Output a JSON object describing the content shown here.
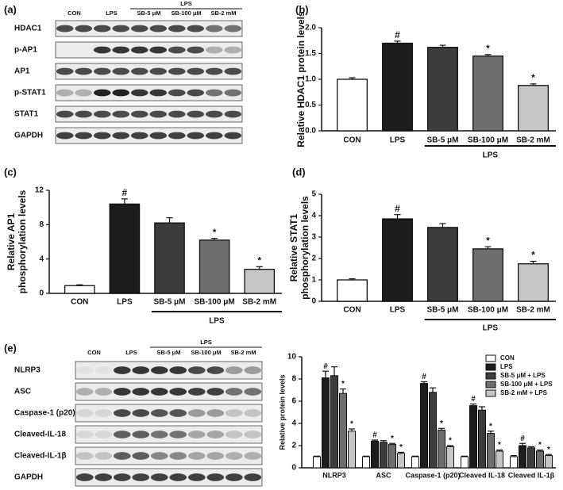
{
  "blots": [
    {
      "panel": "(a)",
      "group_label": "LPS",
      "lanes": [
        "CON",
        "LPS",
        "SB-5 μM",
        "SB-100 μM",
        "SB-2 mM"
      ],
      "rows": [
        "HDAC1",
        "p-AP1",
        "AP1",
        "p-STAT1",
        "STAT1",
        "GAPDH"
      ]
    },
    {
      "panel": "(e)",
      "group_label": "LPS",
      "lanes": [
        "CON",
        "LPS",
        "SB-5 μM",
        "SB-100 μM",
        "SB-2 mM"
      ],
      "rows": [
        "NLRP3",
        "ASC",
        "Caspase-1 (p20)",
        "Cleaved-IL-18",
        "Cleaved-IL-1β",
        "GAPDH"
      ]
    }
  ],
  "chart_data": [
    {
      "type": "bar",
      "panel": "(b)",
      "ylabel": [
        "Relative HDAC1 protein levels"
      ],
      "categories": [
        "CON",
        "LPS",
        "SB-5 μM",
        "SB-100 μM",
        "SB-2 mM"
      ],
      "group_label": "LPS",
      "values": [
        1.0,
        1.7,
        1.62,
        1.45,
        0.88
      ],
      "errors": [
        0.03,
        0.04,
        0.04,
        0.03,
        0.03
      ],
      "annotations": [
        null,
        "#",
        null,
        "*",
        "*"
      ],
      "colors": [
        "#ffffff",
        "#1c1c1c",
        "#3c3c3c",
        "#6e6e6e",
        "#c6c6c6"
      ],
      "ylim": [
        0,
        2
      ],
      "yticks": [
        {
          "value": 0,
          "label": "0.0"
        },
        0.5,
        {
          "value": 1,
          "label": "1.0"
        },
        1.5,
        {
          "value": 2,
          "label": "2.0"
        }
      ]
    },
    {
      "type": "bar",
      "panel": "(c)",
      "ylabel": [
        "Relative AP1",
        "phosphorylation levels"
      ],
      "categories": [
        "CON",
        "LPS",
        "SB-5 μM",
        "SB-100 μM",
        "SB-2 mM"
      ],
      "group_label": "LPS",
      "values": [
        0.9,
        10.4,
        8.2,
        6.2,
        2.8
      ],
      "errors": [
        0.1,
        0.6,
        0.6,
        0.2,
        0.3
      ],
      "annotations": [
        null,
        "#",
        null,
        "*",
        "*"
      ],
      "colors": [
        "#ffffff",
        "#1c1c1c",
        "#3c3c3c",
        "#6e6e6e",
        "#c6c6c6"
      ],
      "ylim": [
        0,
        12
      ],
      "yticks": [
        0,
        4,
        8,
        12
      ]
    },
    {
      "type": "bar",
      "panel": "(d)",
      "ylabel": [
        "Relative STAT1",
        "phosphorylation levels"
      ],
      "categories": [
        "CON",
        "LPS",
        "SB-5 μM",
        "SB-100 μM",
        "SB-2 mM"
      ],
      "group_label": "LPS",
      "values": [
        1.0,
        3.85,
        3.45,
        2.45,
        1.75
      ],
      "errors": [
        0.05,
        0.2,
        0.18,
        0.1,
        0.12
      ],
      "annotations": [
        null,
        "#",
        null,
        "*",
        "*"
      ],
      "colors": [
        "#ffffff",
        "#1c1c1c",
        "#3c3c3c",
        "#6e6e6e",
        "#c6c6c6"
      ],
      "ylim": [
        0,
        5
      ],
      "yticks": [
        0,
        1,
        2,
        3,
        4,
        5
      ]
    },
    {
      "type": "grouped_bar",
      "ylabel": [
        "Relative protein levels"
      ],
      "categories": [
        "NLRP3",
        "ASC",
        "Caspase-1 (p20)",
        "Cleaved IL-18",
        "Cleaved IL-1β"
      ],
      "ylim": [
        0,
        10
      ],
      "yticks": [
        0,
        2,
        4,
        6,
        8,
        10
      ],
      "series": [
        {
          "name": "CON",
          "color": "#ffffff",
          "values": [
            1.0,
            1.0,
            1.0,
            1.0,
            1.0
          ],
          "errors": [
            0.05,
            0.05,
            0.05,
            0.05,
            0.1
          ]
        },
        {
          "name": "LPS",
          "color": "#1c1c1c",
          "values": [
            8.1,
            2.4,
            7.6,
            5.6,
            2.0
          ],
          "errors": [
            0.6,
            0.1,
            0.15,
            0.15,
            0.2
          ],
          "annotations": [
            "#",
            "#",
            "#",
            "#",
            "#"
          ]
        },
        {
          "name": "SB-5 μM + LPS",
          "color": "#3c3c3c",
          "values": [
            8.3,
            2.3,
            6.8,
            5.2,
            1.8
          ],
          "errors": [
            0.8,
            0.15,
            0.4,
            0.3,
            0.1
          ]
        },
        {
          "name": "SB-100 μM + LPS",
          "color": "#6e6e6e",
          "values": [
            6.7,
            2.1,
            3.4,
            3.1,
            1.5
          ],
          "errors": [
            0.4,
            0.1,
            0.15,
            0.2,
            0.1
          ],
          "annotations": [
            "*",
            "*",
            "*",
            "*",
            "*"
          ]
        },
        {
          "name": "SB-2 mM + LPS",
          "color": "#c6c6c6",
          "values": [
            3.3,
            1.3,
            1.9,
            1.5,
            1.1
          ],
          "errors": [
            0.2,
            0.1,
            0.1,
            0.1,
            0.1
          ],
          "annotations": [
            "*",
            "*",
            "*",
            "*",
            "*"
          ]
        }
      ]
    }
  ]
}
